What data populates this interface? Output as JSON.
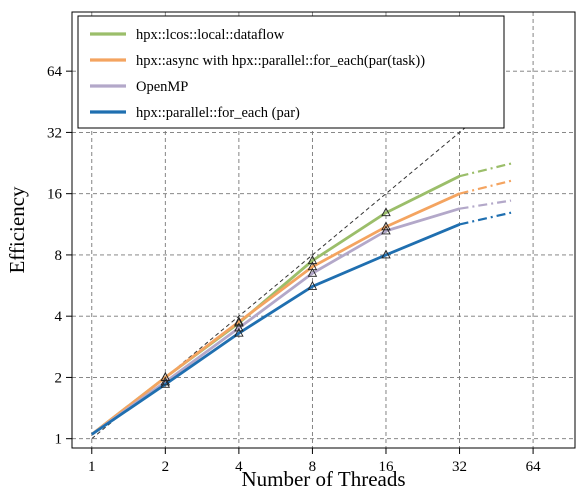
{
  "chart_data": {
    "type": "line",
    "xlabel": "Number of Threads",
    "ylabel": "Efficiency",
    "xscale": "log2",
    "yscale": "log2",
    "x_ticks": [
      1,
      2,
      4,
      8,
      16,
      32,
      64
    ],
    "x_tick_labels": [
      "1",
      "2",
      "4",
      "8",
      "16",
      "32",
      "64"
    ],
    "y_ticks": [
      1,
      2,
      4,
      8,
      16,
      32,
      64
    ],
    "y_tick_labels": [
      "1",
      "2",
      "4",
      "8",
      "16",
      "32",
      "64"
    ],
    "xlim": [
      0.83,
      95
    ],
    "ylim": [
      0.9,
      125
    ],
    "grid": true,
    "legend_position": "top-left",
    "ideal_reference": {
      "x": [
        1,
        45
      ],
      "y": [
        1,
        45
      ]
    },
    "series": [
      {
        "name": "hpx::lcos::local::dataflow",
        "color": "#9bbe6a",
        "x": [
          1,
          2,
          4,
          8,
          16,
          32
        ],
        "y": [
          1.05,
          2.0,
          3.7,
          7.5,
          12.9,
          19.5
        ],
        "extrapolated_x": [
          32,
          52
        ],
        "extrapolated_y": [
          19.5,
          22.5
        ],
        "markers": [
          2,
          4,
          8,
          16
        ]
      },
      {
        "name": "hpx::async with hpx::parallel::for_each(par(task))",
        "color": "#f4a460",
        "x": [
          1,
          2,
          4,
          8,
          16,
          32
        ],
        "y": [
          1.05,
          2.0,
          3.75,
          7.0,
          11.0,
          16.0
        ],
        "extrapolated_x": [
          32,
          52
        ],
        "extrapolated_y": [
          16.0,
          18.5
        ],
        "markers": [
          2,
          4,
          8,
          16
        ]
      },
      {
        "name": "OpenMP",
        "color": "#b3a8c9",
        "x": [
          1,
          2,
          4,
          8,
          16,
          32
        ],
        "y": [
          1.05,
          1.9,
          3.5,
          6.5,
          10.5,
          13.5
        ],
        "extrapolated_x": [
          32,
          52
        ],
        "extrapolated_y": [
          13.5,
          14.8
        ],
        "markers": [
          2,
          4,
          8,
          16
        ]
      },
      {
        "name": "hpx::parallel::for_each (par)",
        "color": "#1f6fb0",
        "x": [
          1,
          2,
          4,
          8,
          16,
          32
        ],
        "y": [
          1.05,
          1.85,
          3.3,
          5.6,
          8.0,
          11.3
        ],
        "extrapolated_x": [
          32,
          52
        ],
        "extrapolated_y": [
          11.3,
          12.9
        ],
        "markers": [
          2,
          4,
          8,
          16
        ]
      }
    ]
  }
}
